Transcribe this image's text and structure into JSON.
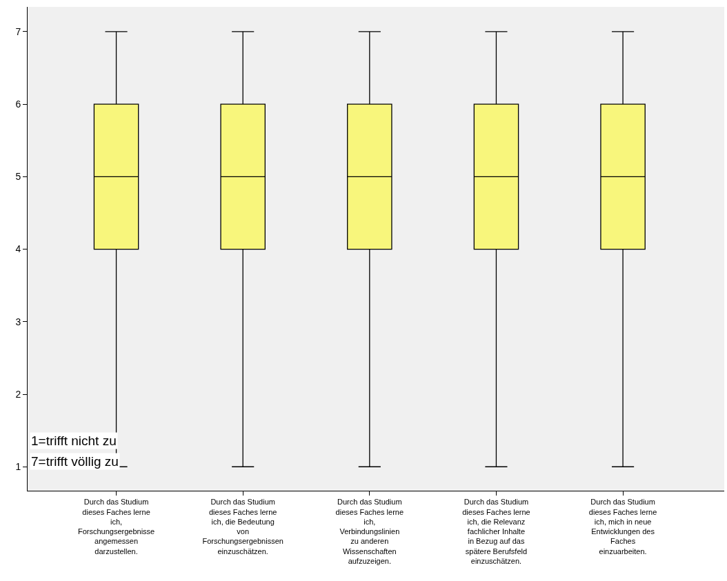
{
  "chart_data": {
    "type": "box",
    "categories": [
      "Durch das Studium dieses Faches lerne ich, Forschungsergebnisse angemessen darzustellen.",
      "Durch das Studium dieses Faches lerne ich, die Bedeutung von Forschungsergebnissen einzuschätzen.",
      "Durch das Studium dieses Faches lerne ich, Verbindungslinien zu anderen Wissenschaften aufzuzeigen.",
      "Durch das Studium dieses Faches lerne ich, die Relevanz fachlicher Inhalte in Bezug auf das spätere Berufsfeld einzuschätzen.",
      "Durch das Studium dieses Faches lerne ich, mich in neue Entwicklungen des Faches einzuarbeiten."
    ],
    "series": [
      {
        "color": "#f8f67c",
        "boxes": [
          {
            "low": 1,
            "q1": 4,
            "median": 5,
            "q3": 6,
            "high": 7
          },
          {
            "low": 1,
            "q1": 4,
            "median": 5,
            "q3": 6,
            "high": 7
          },
          {
            "low": 1,
            "q1": 4,
            "median": 5,
            "q3": 6,
            "high": 7
          },
          {
            "low": 1,
            "q1": 4,
            "median": 5,
            "q3": 6,
            "high": 7
          },
          {
            "low": 1,
            "q1": 4,
            "median": 5,
            "q3": 6,
            "high": 7
          }
        ]
      }
    ],
    "ylim": [
      0.67,
      7.34
    ],
    "yticks": [
      1,
      2,
      3,
      4,
      5,
      6,
      7
    ],
    "grid": false,
    "annotations": [
      "1=trifft nicht zu",
      "7=trifft völlig zu"
    ]
  }
}
